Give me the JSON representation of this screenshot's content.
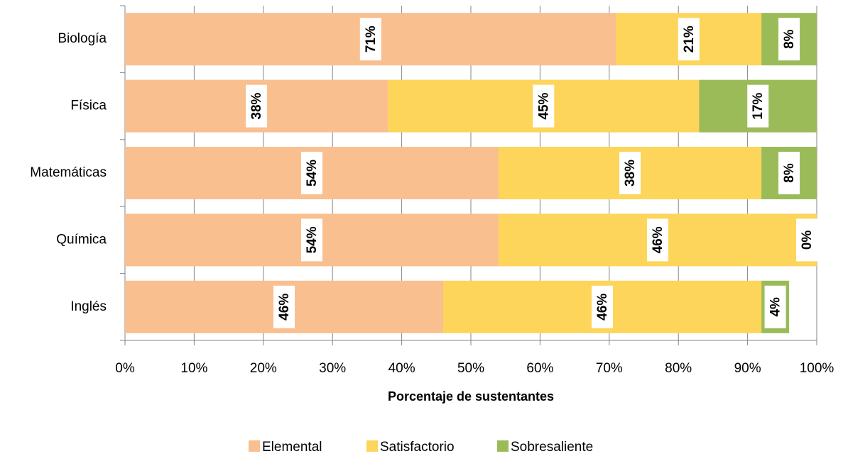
{
  "chart_data": {
    "type": "stacked_barh",
    "categories": [
      "Biología",
      "Física",
      "Matemáticas",
      "Química",
      "Inglés"
    ],
    "series": [
      {
        "name": "Elemental",
        "color": "#f9bf8f",
        "values": [
          71,
          38,
          54,
          54,
          46
        ],
        "value_labels": [
          "71%",
          "38%",
          "54%",
          "54%",
          "46%"
        ]
      },
      {
        "name": "Satisfactorio",
        "color": "#fdd55a",
        "values": [
          21,
          45,
          38,
          46,
          46
        ],
        "value_labels": [
          "21%",
          "45%",
          "38%",
          "46%",
          "46%"
        ]
      },
      {
        "name": "Sobresaliente",
        "color": "#9bbb59",
        "values": [
          8,
          17,
          8,
          0,
          4
        ],
        "value_labels": [
          "8%",
          "17%",
          "8%",
          "0%",
          "4%"
        ]
      }
    ],
    "x_label": "Porcentaje de sustentantes",
    "xlim": [
      0,
      100
    ],
    "xticks": [
      {
        "value": 0,
        "label": "0%"
      },
      {
        "value": 10,
        "label": "10%"
      },
      {
        "value": 20,
        "label": "20%"
      },
      {
        "value": 30,
        "label": "30%"
      },
      {
        "value": 40,
        "label": "40%"
      },
      {
        "value": 50,
        "label": "50%"
      },
      {
        "value": 60,
        "label": "60%"
      },
      {
        "value": 70,
        "label": "70%"
      },
      {
        "value": 80,
        "label": "80%"
      },
      {
        "value": 90,
        "label": "90%"
      },
      {
        "value": 100,
        "label": "100%"
      }
    ],
    "grid": true,
    "legend": "bottom"
  }
}
